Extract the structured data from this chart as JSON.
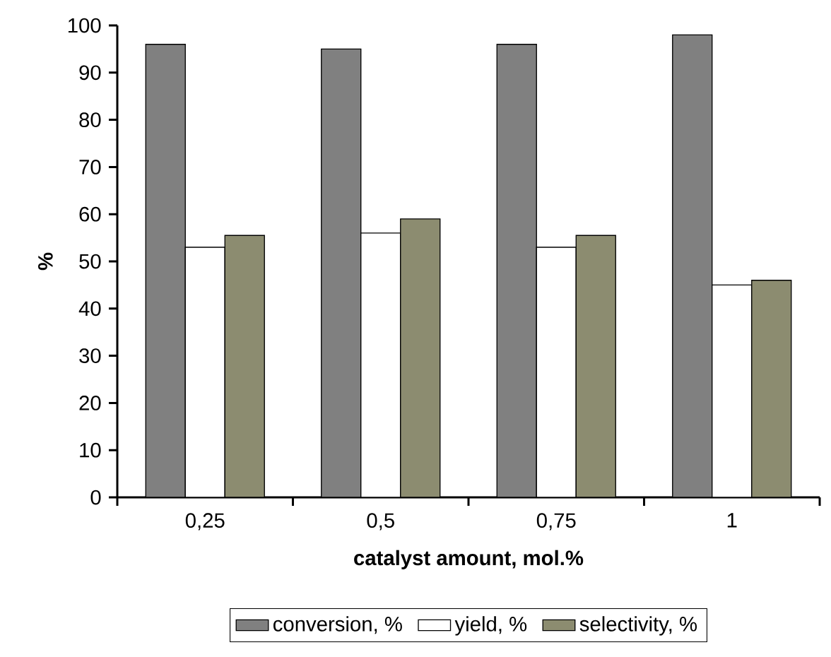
{
  "chart_data": {
    "type": "bar",
    "xlabel": "catalyst amount, mol.%",
    "ylabel": "%",
    "categories": [
      "0,25",
      "0,5",
      "0,75",
      "1"
    ],
    "series": [
      {
        "name": "conversion, %",
        "color": "#808080",
        "values": [
          96,
          95,
          96,
          98
        ]
      },
      {
        "name": "yield, %",
        "color": "#ffffff",
        "values": [
          53,
          56,
          53,
          45
        ]
      },
      {
        "name": "selectivity, %",
        "color": "#8c8c70",
        "values": [
          55.5,
          59,
          55.5,
          46
        ]
      }
    ],
    "ylim": [
      0,
      100
    ],
    "yticks": [
      0,
      10,
      20,
      30,
      40,
      50,
      60,
      70,
      80,
      90,
      100
    ],
    "grid": false,
    "legend": "bottom"
  }
}
